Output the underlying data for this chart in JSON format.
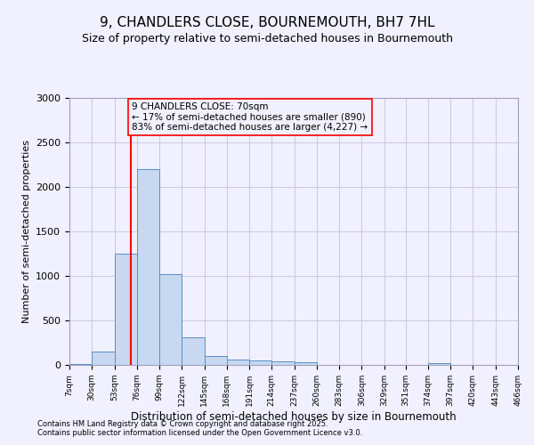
{
  "title_line1": "9, CHANDLERS CLOSE, BOURNEMOUTH, BH7 7HL",
  "title_line2": "Size of property relative to semi-detached houses in Bournemouth",
  "xlabel": "Distribution of semi-detached houses by size in Bournemouth",
  "ylabel": "Number of semi-detached properties",
  "footer_line1": "Contains HM Land Registry data © Crown copyright and database right 2025.",
  "footer_line2": "Contains public sector information licensed under the Open Government Licence v3.0.",
  "bin_edges": [
    7,
    30,
    53,
    76,
    99,
    122,
    145,
    168,
    191,
    214,
    237,
    260,
    283,
    306,
    329,
    351,
    374,
    397,
    420,
    443,
    466
  ],
  "bar_heights": [
    10,
    150,
    1250,
    2200,
    1020,
    310,
    100,
    60,
    55,
    40,
    30,
    0,
    0,
    0,
    0,
    0,
    25,
    0,
    0,
    0
  ],
  "bar_color": "#c8d8f0",
  "bar_edge_color": "#5590c8",
  "red_line_x": 70,
  "annotation_text": "9 CHANDLERS CLOSE: 70sqm\n← 17% of semi-detached houses are smaller (890)\n83% of semi-detached houses are larger (4,227) →",
  "ylim": [
    0,
    3000
  ],
  "yticks": [
    0,
    500,
    1000,
    1500,
    2000,
    2500,
    3000
  ],
  "background_color": "#f0f0ff",
  "grid_color": "#c8c8e0"
}
